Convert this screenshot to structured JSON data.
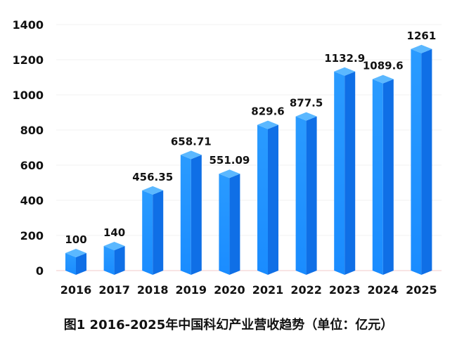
{
  "chart_data": {
    "type": "bar",
    "title": "图1 2016-2025年中国科幻产业营收趋势（单位：亿元）",
    "categories": [
      "2016",
      "2017",
      "2018",
      "2019",
      "2020",
      "2021",
      "2022",
      "2023",
      "2024",
      "2025"
    ],
    "values": [
      100,
      140,
      456.35,
      658.71,
      551.09,
      829.6,
      877.5,
      1132.9,
      1089.6,
      1261
    ],
    "data_labels": [
      "100",
      "140",
      "456.35",
      "658.71",
      "551.09",
      "829.6",
      "877.5",
      "1132.9",
      "1089.6",
      "1261"
    ],
    "xlabel": "",
    "ylabel": "",
    "ylim": [
      0,
      1400
    ],
    "yticks": [
      0,
      200,
      400,
      600,
      800,
      1000,
      1200,
      1400
    ],
    "grid": true,
    "legend": "none",
    "bar_style": "3d-prism",
    "colors": {
      "bar_front": "#1a8cff",
      "bar_side": "#0f6fe6",
      "bar_top": "#5bb8ff",
      "baseline": "#f0c8c8"
    }
  }
}
